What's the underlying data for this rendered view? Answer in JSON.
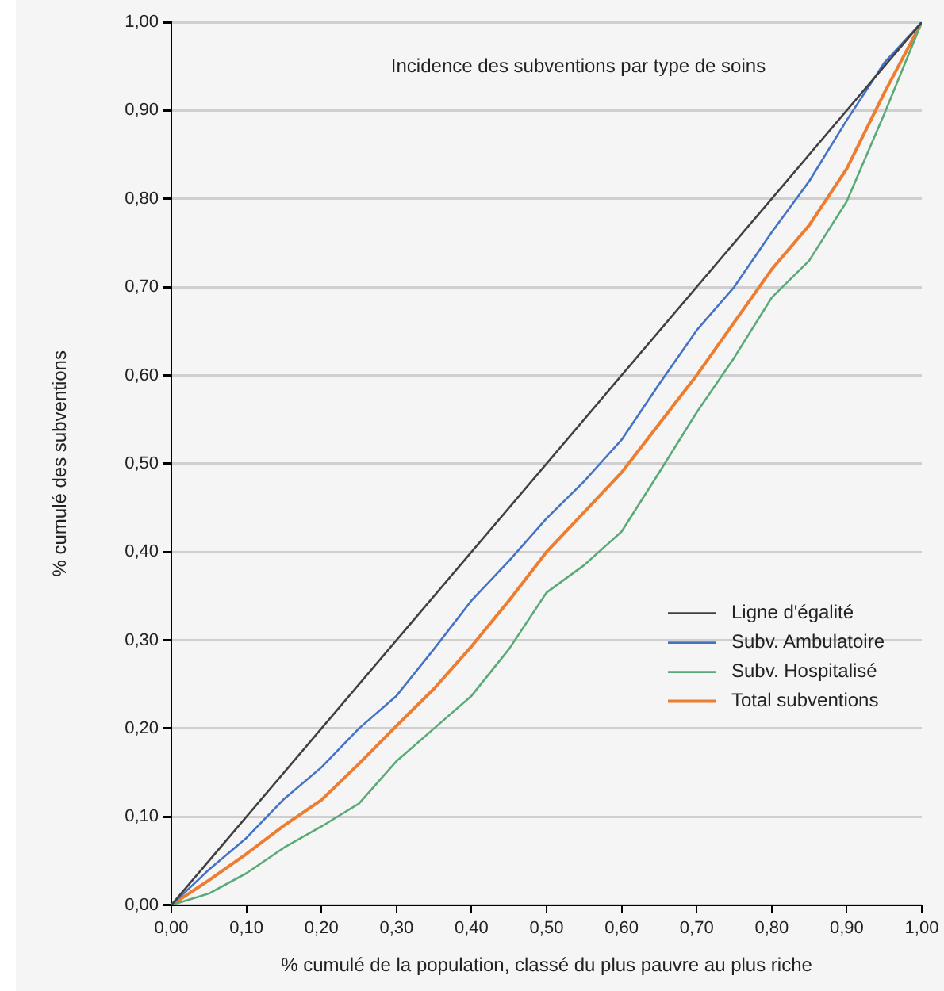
{
  "chart_data": {
    "type": "line",
    "title": "Incidence des subventions par type de soins",
    "xlabel": "% cumulé de la population, classé du plus pauvre au plus riche",
    "ylabel": "% cumulé des subventions",
    "xlim": [
      0,
      1
    ],
    "ylim": [
      0,
      1
    ],
    "xticks": [
      {
        "value": 0,
        "label": "0,00"
      },
      {
        "value": 0.1,
        "label": "0,10"
      },
      {
        "value": 0.2,
        "label": "0,20"
      },
      {
        "value": 0.3,
        "label": "0,30"
      },
      {
        "value": 0.4,
        "label": "0,40"
      },
      {
        "value": 0.5,
        "label": "0,50"
      },
      {
        "value": 0.6,
        "label": "0,60"
      },
      {
        "value": 0.7,
        "label": "0,70"
      },
      {
        "value": 0.8,
        "label": "0,80"
      },
      {
        "value": 0.9,
        "label": "0,90"
      },
      {
        "value": 1,
        "label": "1,00"
      }
    ],
    "yticks": [
      {
        "value": 0,
        "label": "0,00"
      },
      {
        "value": 0.1,
        "label": "0,10"
      },
      {
        "value": 0.2,
        "label": "0,20"
      },
      {
        "value": 0.3,
        "label": "0,30"
      },
      {
        "value": 0.4,
        "label": "0,40"
      },
      {
        "value": 0.5,
        "label": "0,50"
      },
      {
        "value": 0.6,
        "label": "0,60"
      },
      {
        "value": 0.7,
        "label": "0,70"
      },
      {
        "value": 0.8,
        "label": "0,80"
      },
      {
        "value": 0.9,
        "label": "0,90"
      },
      {
        "value": 1,
        "label": "1,00"
      }
    ],
    "grid": "y",
    "legend": "bottom right",
    "marker": "none",
    "line_style": "solid",
    "series": [
      {
        "name": "Ligne d'égalité",
        "color": "#404040",
        "x": [
          0,
          1
        ],
        "values": [
          0,
          1
        ]
      },
      {
        "name": "Subv. Ambulatoire",
        "color": "#4472c4",
        "x": [
          0,
          0.05,
          0.1,
          0.15,
          0.2,
          0.25,
          0.3,
          0.35,
          0.4,
          0.45,
          0.5,
          0.55,
          0.6,
          0.65,
          0.7,
          0.75,
          0.8,
          0.85,
          0.9,
          0.95,
          1
        ],
        "values": [
          0,
          0.04,
          0.076,
          0.12,
          0.156,
          0.2,
          0.237,
          0.29,
          0.345,
          0.39,
          0.438,
          0.48,
          0.527,
          0.59,
          0.651,
          0.7,
          0.762,
          0.82,
          0.889,
          0.954,
          1
        ]
      },
      {
        "name": "Subv. Hospitalisé",
        "color": "#5aaa78",
        "x": [
          0,
          0.05,
          0.1,
          0.15,
          0.2,
          0.25,
          0.3,
          0.35,
          0.4,
          0.45,
          0.5,
          0.55,
          0.6,
          0.65,
          0.7,
          0.75,
          0.8,
          0.85,
          0.9,
          0.95,
          1
        ],
        "values": [
          0,
          0.013,
          0.036,
          0.065,
          0.089,
          0.115,
          0.163,
          0.2,
          0.237,
          0.29,
          0.354,
          0.385,
          0.423,
          0.49,
          0.558,
          0.62,
          0.688,
          0.73,
          0.797,
          0.896,
          1
        ]
      },
      {
        "name": "Total subventions",
        "color": "#ed7d31",
        "x": [
          0,
          0.05,
          0.1,
          0.15,
          0.2,
          0.25,
          0.3,
          0.35,
          0.4,
          0.45,
          0.5,
          0.55,
          0.6,
          0.65,
          0.7,
          0.75,
          0.8,
          0.85,
          0.9,
          0.95,
          1
        ],
        "values": [
          0,
          0.028,
          0.058,
          0.09,
          0.119,
          0.16,
          0.203,
          0.245,
          0.293,
          0.345,
          0.4,
          0.445,
          0.49,
          0.545,
          0.6,
          0.66,
          0.72,
          0.77,
          0.834,
          0.92,
          1
        ]
      }
    ]
  }
}
